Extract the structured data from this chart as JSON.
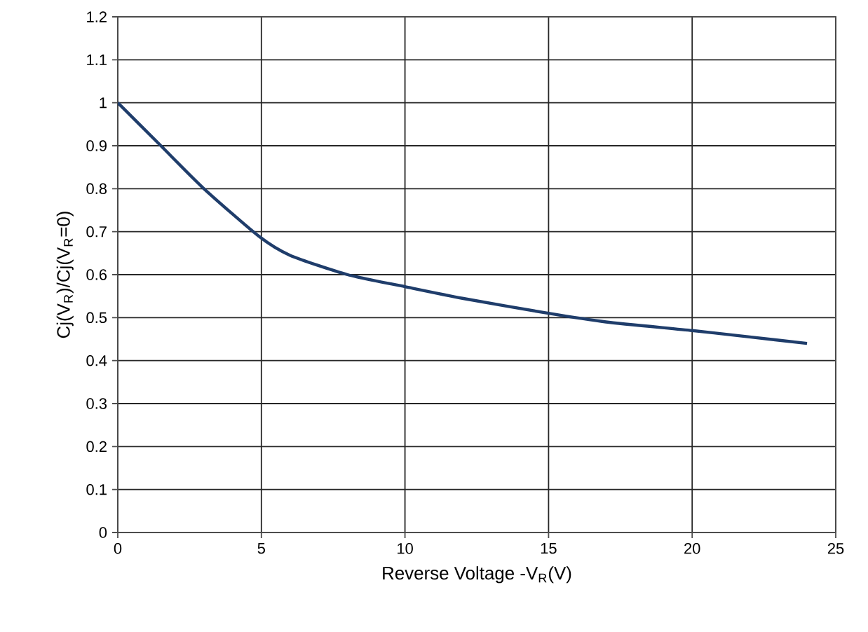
{
  "chart_data": {
    "type": "line",
    "xlabel": "Reverse Voltage  -V$_{R}$(V)",
    "ylabel": "Cj(V$_{R}$)/Cj(V$_{R}$=0)",
    "x": [
      0,
      1.5,
      3,
      4.9,
      6,
      8,
      10,
      12,
      15,
      17,
      20,
      22,
      24
    ],
    "series": [
      {
        "color": "#1f3d6b",
        "values": [
          1,
          0.9,
          0.8,
          0.69,
          0.645,
          0.6,
          0.572,
          0.545,
          0.51,
          0.49,
          0.47,
          0.455,
          0.44
        ]
      }
    ],
    "xlim": [
      0,
      25
    ],
    "xticks": [
      0,
      5,
      10,
      15,
      20,
      25
    ],
    "ylim": [
      0,
      1.2
    ],
    "yticks": [
      0,
      0.1,
      0.2,
      0.3,
      0.4,
      0.5,
      0.6,
      0.7,
      0.8,
      0.9,
      1,
      1.1,
      1.2
    ],
    "grid": true,
    "marker": "none",
    "line_style": "solid"
  }
}
